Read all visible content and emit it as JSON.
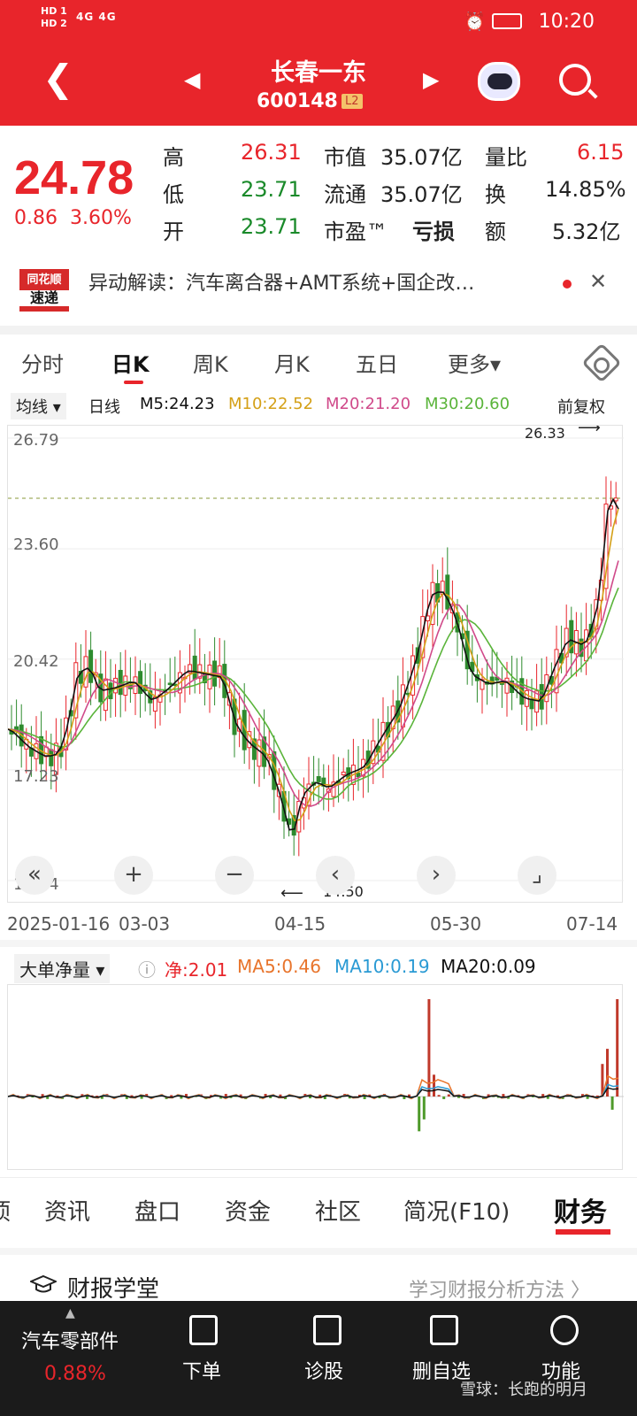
{
  "status": {
    "hd1": "HD 1",
    "hd2": "HD 2",
    "signal": "4G 4G",
    "time": "10:20"
  },
  "header": {
    "name": "长春一东",
    "code": "600148",
    "badge": "L2"
  },
  "quote": {
    "price": "24.78",
    "change": "0.86",
    "change_pct": "3.60%",
    "rows": [
      {
        "k1": "高",
        "v1": "26.31",
        "k2": "市值",
        "v2": "35.07亿",
        "k3": "量比",
        "v3": "6.15"
      },
      {
        "k1": "低",
        "v1": "23.71",
        "k2": "流通",
        "v2": "35.07亿",
        "k3": "换",
        "v3": "14.85%"
      },
      {
        "k1": "开",
        "v1": "23.71",
        "k2": "市盈™",
        "v2": "亏损",
        "k3": "额",
        "v3": "5.32亿"
      }
    ]
  },
  "news": {
    "logo_top": "同花顺",
    "logo_bottom": "速递",
    "text": "异动解读：汽车离合器+AMT系统+国企改…",
    "close": "✕"
  },
  "tabs": [
    "分时",
    "日K",
    "周K",
    "月K",
    "五日",
    "更多▾"
  ],
  "ma": {
    "mode": "均线 ▾",
    "period": "日线",
    "m5": "M5:24.23",
    "m10": "M10:22.52",
    "m20": "M20:21.20",
    "m30": "M30:20.60",
    "adjust": "前复权"
  },
  "chart": {
    "y_labels": [
      "26.79",
      "23.60",
      "20.42",
      "17.23",
      "14.04"
    ],
    "high_label": "26.33",
    "low_label": "14.50",
    "dates": [
      "2025-01-16",
      "03-03",
      "04-15",
      "05-30",
      "07-14"
    ],
    "controls": [
      "«",
      "+",
      "−",
      "‹",
      "›",
      "⌟"
    ]
  },
  "chart_data": {
    "type": "candlestick",
    "ylim": [
      14.04,
      26.79
    ],
    "x": [
      "2025-01-16",
      "03-03",
      "04-15",
      "05-30",
      "07-14"
    ],
    "series": [
      {
        "name": "M5",
        "value": 24.23,
        "color": "#111111"
      },
      {
        "name": "M10",
        "value": 22.52,
        "color": "#d4a017"
      },
      {
        "name": "M20",
        "value": 21.2,
        "color": "#d04a8a"
      },
      {
        "name": "M30",
        "value": 20.6,
        "color": "#5ab43a"
      }
    ],
    "annotations": [
      "26.33",
      "14.50"
    ]
  },
  "flow": {
    "title": "大单净量 ▾",
    "net": "净:2.01",
    "ma5": "MA5:0.46",
    "ma10": "MA10:0.19",
    "ma20": "MA20:0.09"
  },
  "tabs2": [
    "顷",
    "资讯",
    "盘口",
    "资金",
    "社区",
    "简况(F10)",
    "财务"
  ],
  "school": {
    "title": "财报学堂",
    "link": "学习财报分析方法 〉"
  },
  "bottom": {
    "sector": "汽车零部件",
    "sector_pct": "0.88%",
    "items": [
      "下单",
      "诊股",
      "删自选",
      "功能"
    ]
  },
  "watermark": "雪球：长跑的明月"
}
